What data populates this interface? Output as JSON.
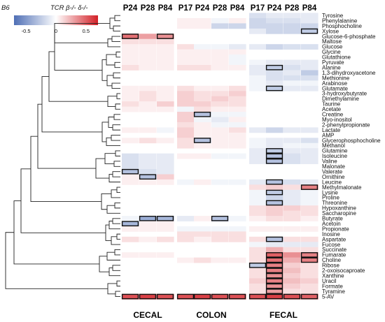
{
  "chart_data": {
    "type": "heatmap",
    "legend": {
      "left_label": "B6",
      "right_label": "TCR β-/- δ-/-",
      "ticks": [
        {
          "label": "-0.5",
          "value": -0.5
        },
        {
          "label": "0",
          "value": 0
        },
        {
          "label": "0.5",
          "value": 0.5
        }
      ],
      "range": [
        -0.7,
        0.7
      ],
      "colors": {
        "low": "#4f6fb5",
        "mid": "#ffffff",
        "high": "#d32027"
      }
    },
    "groups": [
      {
        "name": "CECAL",
        "columns": [
          "P24",
          "P28",
          "P84"
        ]
      },
      {
        "name": "COLON",
        "columns": [
          "P17",
          "P24",
          "P28",
          "P84"
        ]
      },
      {
        "name": "FECAL",
        "columns": [
          "P17",
          "P24",
          "P28",
          "P84"
        ]
      }
    ],
    "rows": [
      {
        "name": "Tyrosine",
        "values": [
          null,
          null,
          null,
          null,
          null,
          null,
          null,
          -0.15,
          -0.1,
          -0.1,
          -0.1
        ]
      },
      {
        "name": "Phenylalanine",
        "values": [
          null,
          null,
          null,
          0.05,
          0.05,
          -0.05,
          0.05,
          -0.2,
          -0.15,
          -0.15,
          -0.1
        ]
      },
      {
        "name": "Phosphocholine",
        "values": [
          null,
          null,
          null,
          0.05,
          0.05,
          -0.2,
          -0.2,
          -0.2,
          -0.2,
          -0.2,
          -0.2
        ]
      },
      {
        "name": "Xylose",
        "values": [
          null,
          null,
          null,
          null,
          null,
          null,
          null,
          -0.1,
          -0.2,
          -0.2,
          -0.25
        ]
      },
      {
        "name": "Glucose-6-phosphate",
        "values": [
          0.45,
          0.3,
          0.35,
          null,
          null,
          null,
          null,
          null,
          null,
          null,
          null
        ]
      },
      {
        "name": "Maltose",
        "values": [
          0.1,
          0.1,
          0.1,
          null,
          null,
          null,
          null,
          null,
          null,
          null,
          null
        ]
      },
      {
        "name": "Glucose",
        "values": [
          0.05,
          0.05,
          0.05,
          0.1,
          -0.05,
          -0.05,
          -0.1,
          -0.1,
          -0.2,
          -0.15,
          -0.15
        ]
      },
      {
        "name": "Glycine",
        "values": [
          0.05,
          0.05,
          0.05,
          0.05,
          0.05,
          0.05,
          0.05,
          null,
          null,
          null,
          null
        ]
      },
      {
        "name": "Glutathione",
        "values": [
          0.05,
          0.05,
          0.05,
          0.05,
          0.05,
          0.05,
          -0.05,
          null,
          null,
          null,
          null
        ]
      },
      {
        "name": "Pyruvate",
        "values": [
          0.05,
          0.05,
          0.05,
          0.05,
          0.05,
          0.05,
          -0.05,
          -0.05,
          -0.1,
          -0.1,
          -0.1
        ]
      },
      {
        "name": "Alanine",
        "values": [
          0.1,
          0.05,
          0.05,
          0.1,
          0.1,
          0.05,
          0.05,
          -0.1,
          -0.25,
          -0.15,
          -0.1
        ]
      },
      {
        "name": "1,3-dihydroxyacetone",
        "values": [
          null,
          null,
          null,
          null,
          null,
          null,
          null,
          -0.1,
          -0.15,
          -0.1,
          -0.25
        ]
      },
      {
        "name": "Methionine",
        "values": [
          null,
          null,
          null,
          null,
          null,
          null,
          null,
          -0.05,
          -0.15,
          -0.15,
          -0.15
        ]
      },
      {
        "name": "Arabinose",
        "values": [
          null,
          null,
          null,
          null,
          null,
          null,
          null,
          -0.05,
          -0.1,
          -0.05,
          -0.05
        ]
      },
      {
        "name": "Glutamate",
        "values": [
          0.05,
          0.05,
          0.05,
          0.1,
          0.05,
          0.05,
          0.1,
          -0.05,
          -0.25,
          -0.1,
          -0.1
        ]
      },
      {
        "name": "3-hydroxybutyrate",
        "values": [
          0.05,
          0.1,
          0.05,
          0.15,
          0.1,
          0.1,
          0.15,
          null,
          null,
          null,
          null
        ]
      },
      {
        "name": "Dimethylamine",
        "values": [
          0.05,
          0.1,
          0.05,
          0.15,
          0.1,
          0.15,
          0.1,
          null,
          null,
          null,
          null
        ]
      },
      {
        "name": "Taurine",
        "values": [
          0.1,
          0.05,
          0.15,
          0.15,
          0.15,
          0.1,
          0.1,
          null,
          null,
          null,
          null
        ]
      },
      {
        "name": "Acetate",
        "values": [
          0.05,
          0.05,
          0.05,
          -0.05,
          0.1,
          0.05,
          0.05,
          null,
          null,
          null,
          null
        ]
      },
      {
        "name": "Creatine",
        "values": [
          null,
          null,
          null,
          0.15,
          -0.3,
          -0.05,
          -0.05,
          null,
          null,
          null,
          null
        ]
      },
      {
        "name": "Myo-inositol",
        "values": [
          null,
          null,
          null,
          0.15,
          -0.05,
          -0.1,
          0.05,
          null,
          null,
          null,
          null
        ]
      },
      {
        "name": "2-phenylpropionate",
        "values": [
          null,
          null,
          null,
          0.1,
          0.05,
          -0.05,
          -0.05,
          null,
          null,
          null,
          null
        ]
      },
      {
        "name": "Lactate",
        "values": [
          0.05,
          0.05,
          -0.05,
          0.15,
          0.05,
          0.05,
          0.1,
          -0.1,
          -0.2,
          -0.1,
          -0.1
        ]
      },
      {
        "name": "AMP",
        "values": [
          null,
          null,
          null,
          0.15,
          0.05,
          0.05,
          0.05,
          null,
          null,
          null,
          null
        ]
      },
      {
        "name": "Glycerophosphocholine",
        "values": [
          0.05,
          0.1,
          0.05,
          0.1,
          -0.3,
          0.05,
          0.05,
          -0.05,
          -0.1,
          -0.1,
          -0.15
        ]
      },
      {
        "name": "Methanol",
        "values": [
          null,
          null,
          null,
          0.1,
          0.05,
          0.05,
          0.05,
          -0.05,
          -0.1,
          -0.05,
          -0.05
        ]
      },
      {
        "name": "Glutamine",
        "values": [
          null,
          null,
          null,
          null,
          null,
          null,
          null,
          -0.1,
          -0.25,
          -0.1,
          -0.1
        ]
      },
      {
        "name": "Isoleucine",
        "values": [
          -0.15,
          -0.1,
          -0.1,
          0.05,
          0.05,
          -0.05,
          -0.05,
          -0.1,
          -0.3,
          -0.15,
          -0.1
        ]
      },
      {
        "name": "Valine",
        "values": [
          -0.15,
          -0.1,
          -0.1,
          null,
          null,
          null,
          null,
          -0.1,
          -0.3,
          -0.15,
          -0.1
        ]
      },
      {
        "name": "Malonate",
        "values": [
          -0.15,
          -0.1,
          -0.1,
          null,
          null,
          null,
          null,
          null,
          null,
          null,
          null
        ]
      },
      {
        "name": "Valerate",
        "values": [
          -0.3,
          -0.15,
          -0.1,
          null,
          null,
          null,
          null,
          null,
          null,
          null,
          null
        ]
      },
      {
        "name": "Ornithine",
        "values": [
          0.05,
          -0.3,
          0.15,
          null,
          null,
          null,
          null,
          null,
          null,
          null,
          null
        ]
      },
      {
        "name": "Leucine",
        "values": [
          0.05,
          0.05,
          0.05,
          -0.05,
          0.05,
          -0.05,
          -0.05,
          -0.1,
          -0.3,
          -0.15,
          -0.1
        ]
      },
      {
        "name": "Methylmalonate",
        "values": [
          null,
          null,
          null,
          null,
          null,
          null,
          null,
          0.1,
          0.15,
          0.1,
          0.4
        ]
      },
      {
        "name": "Lysine",
        "values": [
          null,
          null,
          null,
          null,
          null,
          null,
          null,
          -0.05,
          -0.25,
          -0.1,
          -0.05
        ]
      },
      {
        "name": "Proline",
        "values": [
          null,
          null,
          null,
          null,
          null,
          null,
          null,
          -0.05,
          -0.2,
          -0.1,
          -0.05
        ]
      },
      {
        "name": "Threonine",
        "values": [
          null,
          null,
          null,
          null,
          null,
          null,
          null,
          -0.05,
          -0.3,
          -0.1,
          -0.05
        ]
      },
      {
        "name": "Hypoxanthine",
        "values": [
          null,
          null,
          null,
          null,
          null,
          null,
          null,
          0.1,
          0.15,
          0.15,
          0.1
        ]
      },
      {
        "name": "Saccharopine",
        "values": [
          null,
          null,
          null,
          null,
          null,
          null,
          null,
          0.1,
          0.15,
          0.1,
          0.1
        ]
      },
      {
        "name": "Butyrate",
        "values": [
          -0.05,
          -0.4,
          -0.35,
          -0.1,
          0.05,
          -0.3,
          -0.05,
          0.05,
          0.1,
          0.1,
          0.05
        ]
      },
      {
        "name": "Acetoin",
        "values": [
          -0.35,
          0.05,
          0.05,
          null,
          null,
          null,
          null,
          null,
          null,
          null,
          null
        ]
      },
      {
        "name": "Propionate",
        "values": [
          0.05,
          0.05,
          0.05,
          -0.05,
          -0.05,
          -0.05,
          -0.05,
          0.05,
          0.05,
          0.05,
          0.05
        ]
      },
      {
        "name": "Inosine",
        "values": [
          null,
          null,
          null,
          0.1,
          0.1,
          0.1,
          0.1,
          null,
          null,
          null,
          null
        ]
      },
      {
        "name": "Aspartate",
        "values": [
          0.1,
          0.05,
          0.1,
          0.1,
          0.05,
          0.1,
          0.1,
          0.1,
          -0.3,
          0.1,
          0.1
        ]
      },
      {
        "name": "Fucose",
        "values": [
          null,
          null,
          null,
          null,
          null,
          null,
          null,
          -0.05,
          -0.1,
          -0.1,
          -0.1
        ]
      },
      {
        "name": "Succinate",
        "values": [
          null,
          null,
          null,
          null,
          null,
          null,
          null,
          0.1,
          0.25,
          0.1,
          0.1
        ]
      },
      {
        "name": "Fumarate",
        "values": [
          0.05,
          0.05,
          0.05,
          null,
          null,
          null,
          null,
          0.1,
          0.5,
          0.35,
          0.4
        ]
      },
      {
        "name": "Choline",
        "values": [
          null,
          null,
          null,
          0.05,
          0.1,
          0.05,
          0.05,
          0.1,
          0.45,
          0.25,
          0.4
        ]
      },
      {
        "name": "Ribose",
        "values": [
          null,
          null,
          null,
          null,
          null,
          null,
          null,
          -0.25,
          0.4,
          0.15,
          0.1
        ]
      },
      {
        "name": "2-oxoisocaproate",
        "values": [
          null,
          null,
          null,
          null,
          null,
          null,
          null,
          0.1,
          0.4,
          0.2,
          0.1
        ]
      },
      {
        "name": "Xanthine",
        "values": [
          null,
          null,
          null,
          null,
          null,
          null,
          null,
          0.1,
          0.35,
          0.15,
          0.1
        ]
      },
      {
        "name": "Uracil",
        "values": [
          null,
          null,
          null,
          null,
          null,
          null,
          null,
          0.15,
          0.4,
          0.2,
          0.15
        ]
      },
      {
        "name": "Formate",
        "values": [
          null,
          null,
          null,
          null,
          null,
          null,
          null,
          0.1,
          0.35,
          0.15,
          0.1
        ]
      },
      {
        "name": "Tyramine",
        "values": [
          null,
          null,
          null,
          null,
          null,
          null,
          null,
          0.1,
          0.3,
          0.1,
          0.1
        ]
      },
      {
        "name": "5-AV",
        "values": [
          0.55,
          0.6,
          0.55,
          0.55,
          0.6,
          0.55,
          0.55,
          0.55,
          0.6,
          0.55,
          0.5
        ]
      }
    ],
    "highlighted": [
      [
        3,
        10
      ],
      [
        4,
        0
      ],
      [
        4,
        2
      ],
      [
        10,
        8
      ],
      [
        14,
        8
      ],
      [
        19,
        4
      ],
      [
        24,
        4
      ],
      [
        26,
        8
      ],
      [
        27,
        8
      ],
      [
        28,
        8
      ],
      [
        30,
        0
      ],
      [
        31,
        1
      ],
      [
        32,
        8
      ],
      [
        33,
        10
      ],
      [
        34,
        8
      ],
      [
        36,
        8
      ],
      [
        39,
        1
      ],
      [
        39,
        2
      ],
      [
        39,
        5
      ],
      [
        40,
        0
      ],
      [
        43,
        8
      ],
      [
        46,
        8
      ],
      [
        46,
        10
      ],
      [
        47,
        8
      ],
      [
        47,
        10
      ],
      [
        48,
        7
      ],
      [
        48,
        8
      ],
      [
        49,
        8
      ],
      [
        50,
        8
      ],
      [
        51,
        8
      ],
      [
        52,
        8
      ],
      [
        53,
        8
      ],
      [
        54,
        0
      ],
      [
        54,
        1
      ],
      [
        54,
        2
      ],
      [
        54,
        3
      ],
      [
        54,
        4
      ],
      [
        54,
        5
      ],
      [
        54,
        6
      ],
      [
        54,
        7
      ],
      [
        54,
        8
      ],
      [
        54,
        9
      ],
      [
        54,
        10
      ]
    ]
  }
}
